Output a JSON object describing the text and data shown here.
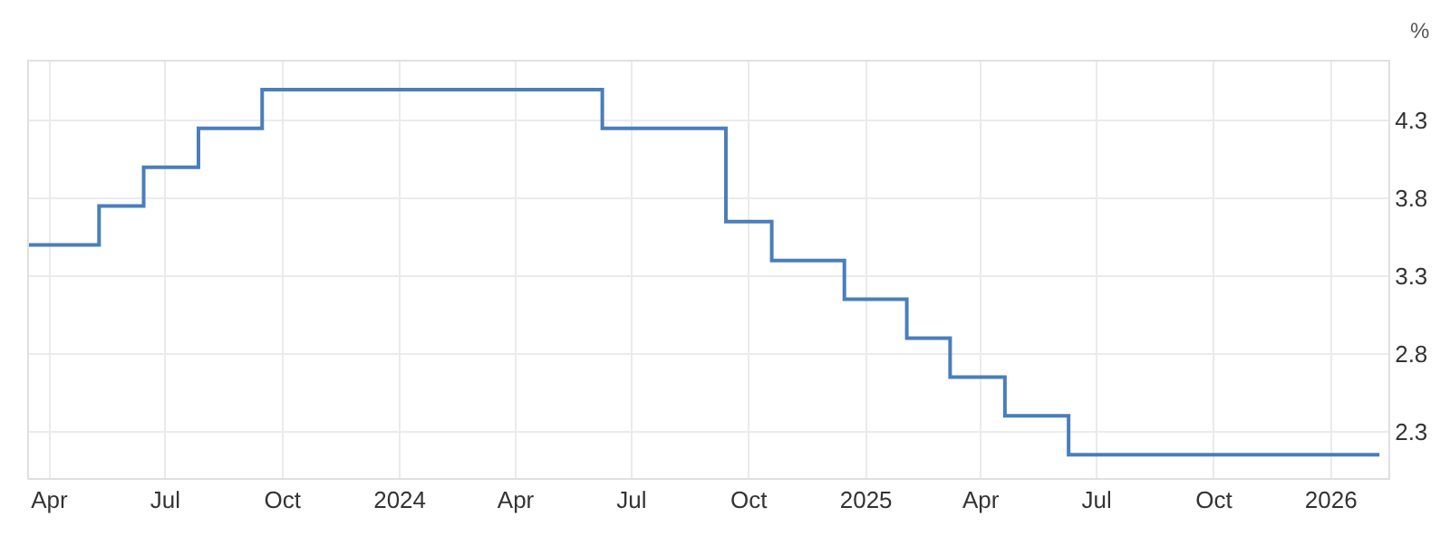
{
  "chart_data": {
    "type": "step",
    "ylabel": "%",
    "color": "#4a7ebb",
    "x": [
      "2023-03-16",
      "2023-05-10",
      "2023-06-14",
      "2023-07-27",
      "2023-09-15",
      "2024-06-08",
      "2024-09-13",
      "2024-10-19",
      "2024-12-15",
      "2025-02-02",
      "2025-03-08",
      "2025-04-20",
      "2025-06-09",
      "2026-02-08"
    ],
    "values": [
      3.5,
      3.75,
      4.0,
      4.25,
      4.5,
      4.25,
      3.65,
      3.4,
      3.15,
      2.9,
      2.65,
      2.4,
      2.15,
      2.15
    ],
    "xlim": [
      "2023-03-16",
      "2026-02-15"
    ],
    "xticks": [
      {
        "value": "2023-04-01",
        "label": "Apr"
      },
      {
        "value": "2023-07-01",
        "label": "Jul"
      },
      {
        "value": "2023-10-01",
        "label": "Oct"
      },
      {
        "value": "2024-01-01",
        "label": "2024"
      },
      {
        "value": "2024-04-01",
        "label": "Apr"
      },
      {
        "value": "2024-07-01",
        "label": "Jul"
      },
      {
        "value": "2024-10-01",
        "label": "Oct"
      },
      {
        "value": "2025-01-01",
        "label": "2025"
      },
      {
        "value": "2025-04-01",
        "label": "Apr"
      },
      {
        "value": "2025-07-01",
        "label": "Jul"
      },
      {
        "value": "2025-10-01",
        "label": "Oct"
      },
      {
        "value": "2026-01-01",
        "label": "2026"
      }
    ],
    "ylim": [
      2.0,
      4.68
    ],
    "yticks": [
      2.3,
      2.8,
      3.3,
      3.8,
      4.3
    ],
    "grid": true,
    "line_style": "solid"
  }
}
